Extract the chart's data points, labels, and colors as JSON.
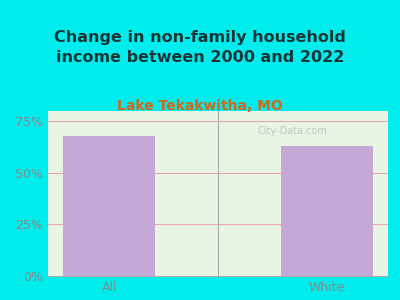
{
  "title": "Change in non-family household\nincome between 2000 and 2022",
  "subtitle": "Lake Tekakwitha, MO",
  "categories": [
    "All",
    "White"
  ],
  "values": [
    68.0,
    63.0
  ],
  "bar_color": "#c4a8d8",
  "background_color": "#00eded",
  "plot_bg_color": "#e8f5e5",
  "title_color": "#1a3535",
  "subtitle_color": "#d06818",
  "axis_label_color": "#b04400",
  "tick_label_color": "#888888",
  "grid_color": "#e8a8a8",
  "ylim": [
    0,
    80
  ],
  "yticks": [
    0,
    25,
    50,
    75
  ],
  "ytick_labels": [
    "0%",
    "25%",
    "50%",
    "75%"
  ],
  "title_fontsize": 11.5,
  "subtitle_fontsize": 10,
  "tick_fontsize": 9,
  "watermark": "City-Data.com"
}
